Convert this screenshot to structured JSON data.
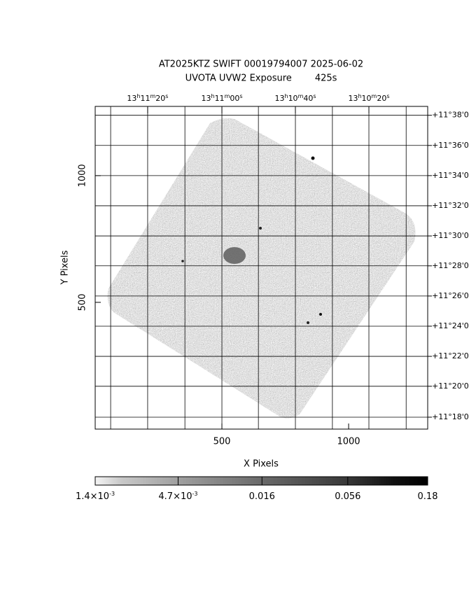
{
  "chart_data": {
    "type": "image",
    "title": "AT2025KTZ SWIFT 00019794007 2025-06-02",
    "subtitle": "UVOTA UVW2 Exposure        425s",
    "xlabel": "X Pixels",
    "ylabel": "Y Pixels",
    "xlim": [
      0,
      1312
    ],
    "ylim": [
      0,
      1273
    ],
    "xticks": [
      500,
      1000
    ],
    "yticks": [
      500,
      1000
    ],
    "top_ticks": [
      {
        "value": 207,
        "label": "13h11m20s"
      },
      {
        "value": 500,
        "label": "13h11m00s"
      },
      {
        "value": 790,
        "label": "13h10m40s"
      },
      {
        "value": 1080,
        "label": "13h10m20s"
      }
    ],
    "right_ticks": [
      {
        "value": 1238,
        "label": "+11°38'0"
      },
      {
        "value": 1119,
        "label": "+11°36'0"
      },
      {
        "value": 1000,
        "label": "+11°34'0"
      },
      {
        "value": 881,
        "label": "+11°32'0"
      },
      {
        "value": 762,
        "label": "+11°30'0"
      },
      {
        "value": 644,
        "label": "+11°28'0"
      },
      {
        "value": 525,
        "label": "+11°26'0"
      },
      {
        "value": 406,
        "label": "+11°24'0"
      },
      {
        "value": 287,
        "label": "+11°22'0"
      },
      {
        "value": 169,
        "label": "+11°20'0"
      },
      {
        "value": 47,
        "label": "+11°18'0"
      }
    ],
    "grid_x": [
      61,
      207,
      354,
      500,
      644,
      790,
      936,
      1080,
      1227
    ],
    "grid": true,
    "colorbar": {
      "lim": [
        0.0014,
        0.18
      ],
      "log": true,
      "ticks": [
        {
          "value": 0.0014,
          "label": "1.4×10-3"
        },
        {
          "value": 0.0047,
          "label": "4.7×10-3"
        },
        {
          "value": 0.016,
          "label": "0.016"
        },
        {
          "value": 0.056,
          "label": "0.056"
        },
        {
          "value": 0.18,
          "label": "0.18"
        }
      ]
    }
  }
}
